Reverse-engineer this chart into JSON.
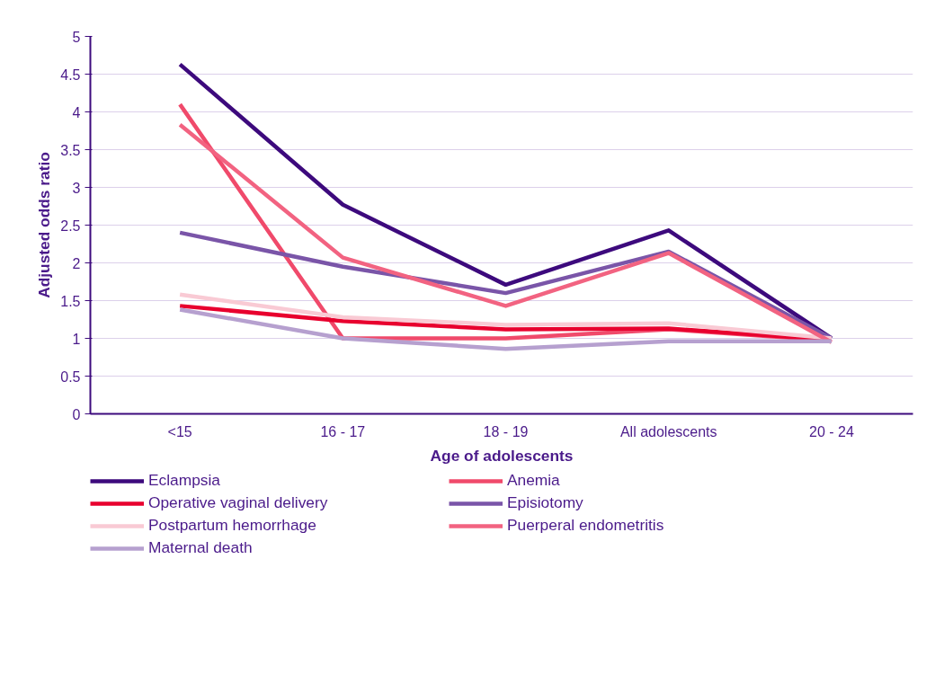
{
  "chart_data": {
    "type": "line",
    "xlabel": "Age of adolescents",
    "ylabel": "Adjusted odds ratio",
    "categories": [
      "<15",
      "16 - 17",
      "18 - 19",
      "All adolescents",
      "20 - 24"
    ],
    "ylim": [
      0,
      5
    ],
    "yticks": [
      0,
      0.5,
      1,
      1.5,
      2,
      2.5,
      3,
      3.5,
      4,
      4.5,
      5
    ],
    "grid": "y",
    "legend": "bottom",
    "marker": "none",
    "line_style": "solid",
    "series": [
      {
        "name": "Eclampsia",
        "color": "#3d0a7d",
        "values": [
          4.63,
          2.77,
          1.71,
          2.43,
          1.0
        ]
      },
      {
        "name": "Anemia",
        "color": "#f04a6b",
        "values": [
          4.1,
          1.0,
          1.0,
          1.12,
          0.97
        ]
      },
      {
        "name": "Operative vaginal delivery",
        "color": "#e8002e",
        "values": [
          1.43,
          1.23,
          1.12,
          1.13,
          0.98
        ]
      },
      {
        "name": "Episiotomy",
        "color": "#7a55a8",
        "values": [
          2.4,
          1.95,
          1.6,
          2.15,
          1.0
        ]
      },
      {
        "name": "Postpartum hemorrhage",
        "color": "#f9cad4",
        "values": [
          1.58,
          1.28,
          1.18,
          1.2,
          1.0
        ]
      },
      {
        "name": "Puerperal endometritis",
        "color": "#f26381",
        "values": [
          3.83,
          2.07,
          1.43,
          2.13,
          0.95
        ]
      },
      {
        "name": "Maternal death",
        "color": "#b6a0cf",
        "values": [
          1.38,
          1.0,
          0.86,
          0.96,
          0.96
        ]
      }
    ]
  }
}
